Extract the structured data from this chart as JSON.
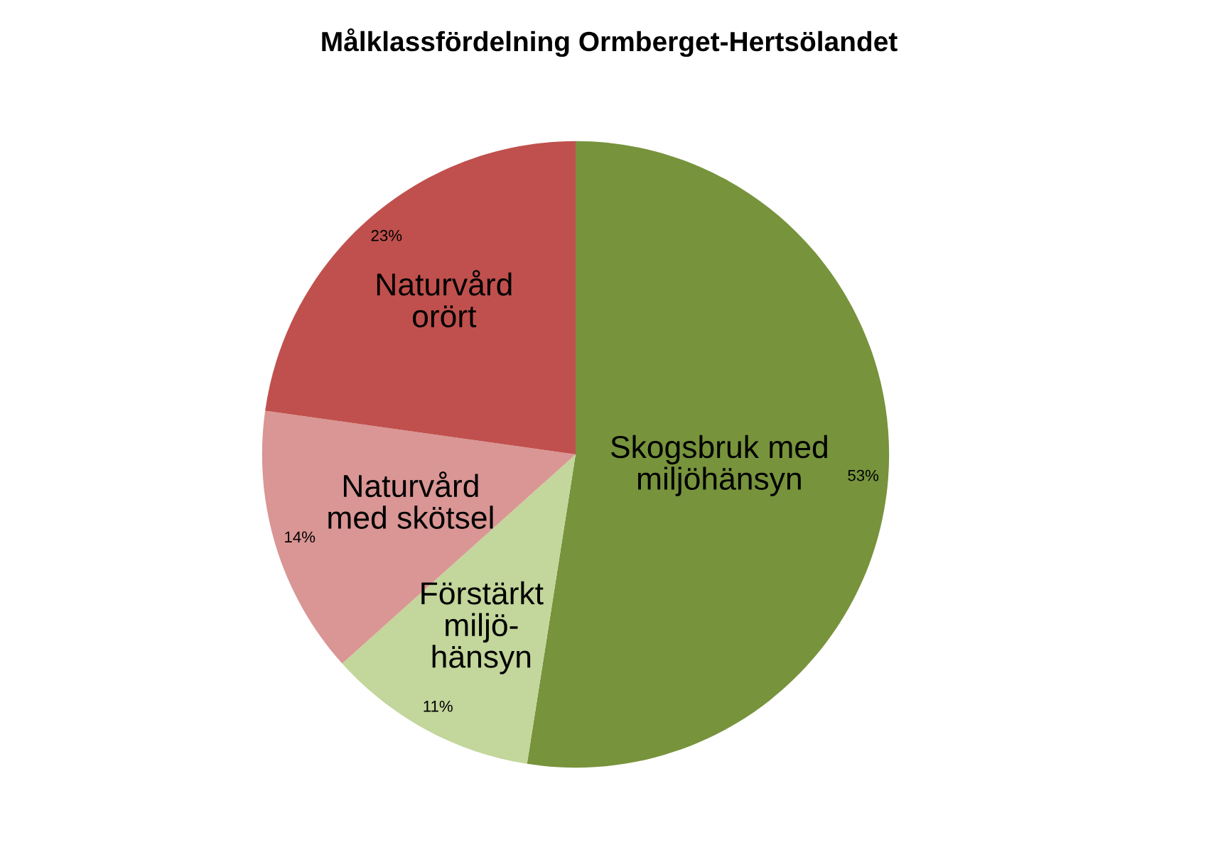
{
  "chart_data": {
    "type": "pie",
    "title": "Målklassfördelning Ormberget-Hertsölandet",
    "categories": [
      "Skogsbruk med\nmiljöhänsyn",
      "Förstärkt\nmiljö-\nhänsyn",
      "Naturvård\nmed skötsel",
      "Naturvård\norört"
    ],
    "values": [
      53,
      11,
      14,
      23
    ],
    "colors": [
      "#77933c",
      "#c3d69b",
      "#d99694",
      "#c0504d"
    ],
    "value_labels": [
      "53%",
      "11%",
      "14%",
      "23%"
    ],
    "legend": false
  }
}
